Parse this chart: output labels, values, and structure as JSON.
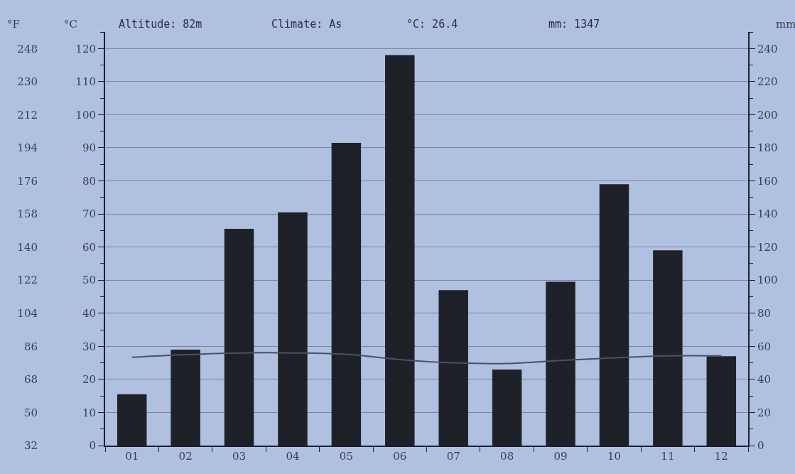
{
  "chart_data": {
    "type": "bar",
    "categories": [
      "01",
      "02",
      "03",
      "04",
      "05",
      "06",
      "07",
      "08",
      "09",
      "10",
      "11",
      "12"
    ],
    "series": [
      {
        "axis": "y2",
        "color": "#1f2128",
        "values": [
          31,
          58,
          131,
          141,
          183,
          236,
          94,
          46,
          99,
          158,
          118,
          54
        ]
      },
      {
        "type": "line",
        "axis": "y",
        "color": "#4a5068",
        "line_style": "solid",
        "marker": "none",
        "values": [
          26.7,
          27.5,
          28,
          28,
          27.6,
          26,
          25,
          24.8,
          25.7,
          26.5,
          27.1,
          27.1
        ]
      }
    ],
    "ylabel": "°C",
    "y2label": "mm",
    "y3label": "°F",
    "ylim": [
      0,
      125
    ],
    "yticks": [
      0,
      10,
      20,
      30,
      40,
      50,
      60,
      70,
      80,
      90,
      100,
      110,
      120
    ],
    "y2lim": [
      0,
      250
    ],
    "y2ticks": [
      0,
      20,
      40,
      60,
      80,
      100,
      120,
      140,
      160,
      180,
      200,
      220,
      240
    ],
    "y3lim": [
      32,
      257
    ],
    "y3ticks": [
      32,
      50,
      68,
      86,
      104,
      122,
      140,
      158,
      176,
      194,
      212,
      230,
      248
    ],
    "annotations": [
      "Altitude: 82m",
      "Climate: As",
      "°C: 26.4",
      "mm: 1347"
    ],
    "grid": "y"
  }
}
